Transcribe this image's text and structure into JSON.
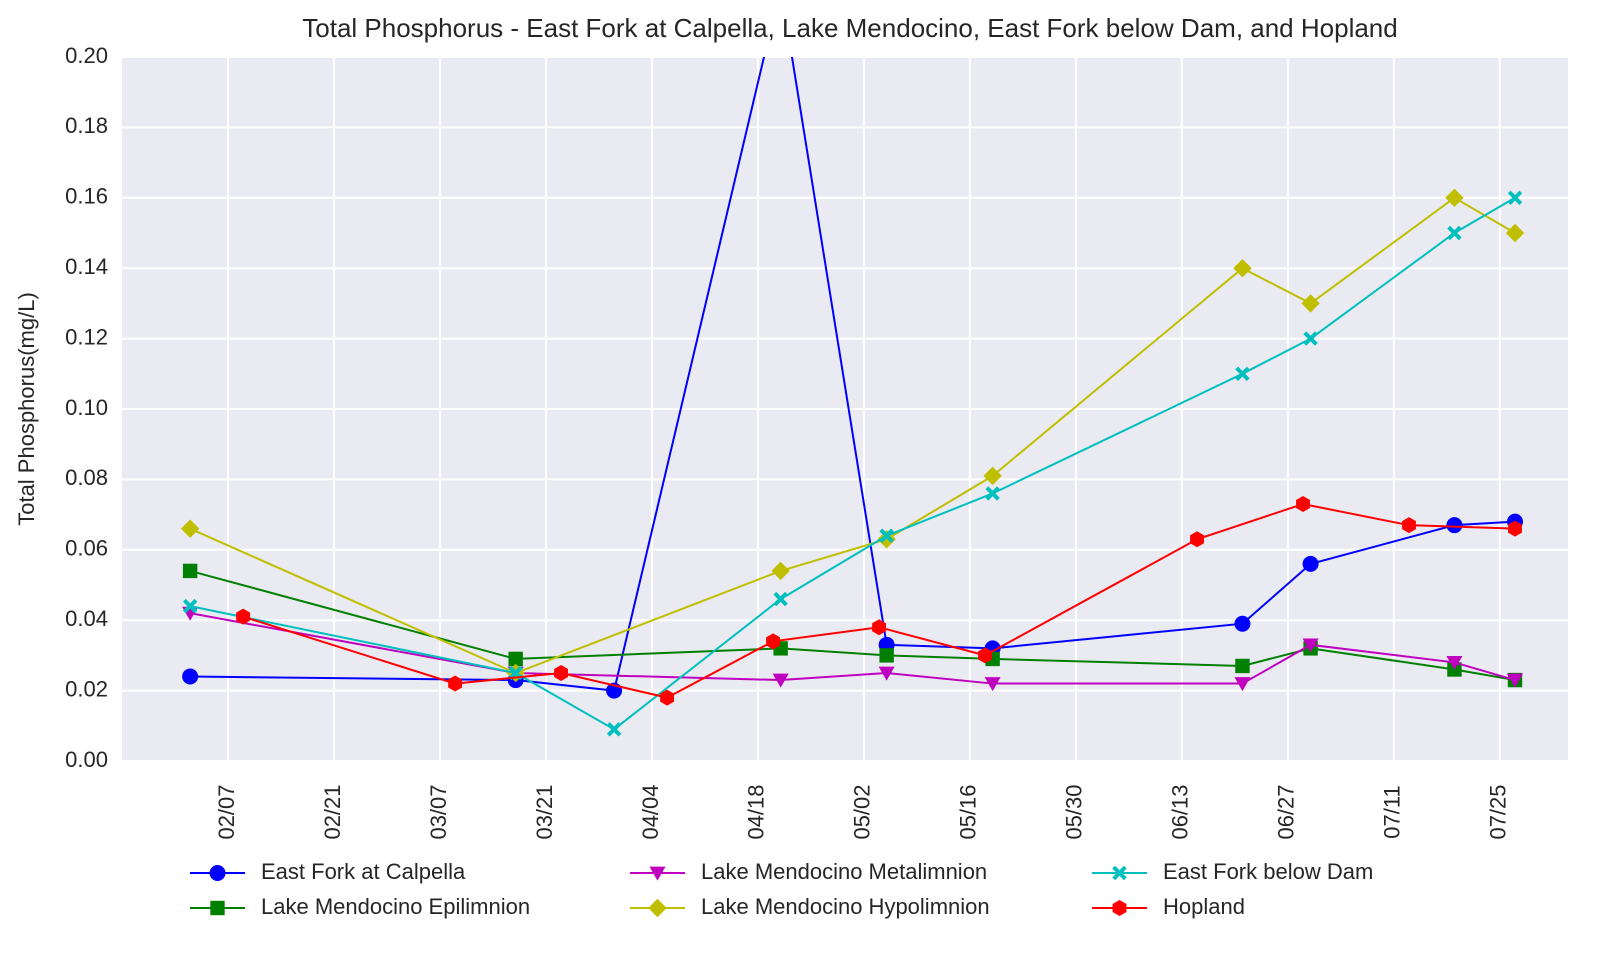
{
  "chart_data": {
    "type": "line",
    "title": "Total Phosphorus - East Fork at Calpella, Lake Mendocino, East Fork below Dam, and Hopland",
    "y_label": "Total Phosphorus(mg/L)",
    "xlim": [
      "01/24",
      "08/03"
    ],
    "xticks": [
      "02/07",
      "02/21",
      "03/07",
      "03/21",
      "04/04",
      "04/18",
      "05/02",
      "05/16",
      "05/30",
      "06/13",
      "06/27",
      "07/11",
      "07/25"
    ],
    "ylim": [
      0,
      0.2
    ],
    "yticks": [
      {
        "value": 0,
        "label": "0.00"
      },
      {
        "value": 0.02,
        "label": "0.02"
      },
      {
        "value": 0.04,
        "label": "0.04"
      },
      {
        "value": 0.06,
        "label": "0.06"
      },
      {
        "value": 0.08,
        "label": "0.08"
      },
      {
        "value": 0.1,
        "label": "0.10"
      },
      {
        "value": 0.12,
        "label": "0.12"
      },
      {
        "value": 0.14,
        "label": "0.14"
      },
      {
        "value": 0.16,
        "label": "0.16"
      },
      {
        "value": 0.18,
        "label": "0.18"
      },
      {
        "value": 0.2,
        "label": "0.20"
      }
    ],
    "grid": true,
    "legend": "bottom",
    "series": [
      {
        "name": "East Fork at Calpella",
        "color": "#0000ff",
        "marker": "circle",
        "x": [
          "02/02",
          "03/17",
          "03/30",
          "04/21",
          "05/05",
          "05/19",
          "06/21",
          "06/30",
          "07/19",
          "07/27"
        ],
        "values": [
          0.024,
          0.023,
          0.02,
          0.22,
          0.033,
          0.032,
          0.039,
          0.056,
          0.067,
          0.068
        ]
      },
      {
        "name": "Lake Mendocino Epilimnion",
        "color": "#008000",
        "marker": "square",
        "x": [
          "02/02",
          "03/17",
          "04/21",
          "05/05",
          "05/19",
          "06/21",
          "06/30",
          "07/19",
          "07/27"
        ],
        "values": [
          0.054,
          0.029,
          0.032,
          0.03,
          0.029,
          0.027,
          0.032,
          0.026,
          0.023
        ]
      },
      {
        "name": "Lake Mendocino Metalimnion",
        "color": "#bf00bf",
        "marker": "triangle-down",
        "x": [
          "02/02",
          "03/17",
          "04/21",
          "05/05",
          "05/19",
          "06/21",
          "06/30",
          "07/19",
          "07/27"
        ],
        "values": [
          0.042,
          0.025,
          0.023,
          0.025,
          0.022,
          0.022,
          0.033,
          0.028,
          0.023
        ]
      },
      {
        "name": "Lake Mendocino Hypolimnion",
        "color": "#bfbf00",
        "marker": "diamond",
        "x": [
          "02/02",
          "03/17",
          "04/21",
          "05/05",
          "05/19",
          "06/21",
          "06/30",
          "07/19",
          "07/27"
        ],
        "values": [
          0.066,
          0.025,
          0.054,
          0.063,
          0.081,
          0.14,
          0.13,
          0.16,
          0.15
        ]
      },
      {
        "name": "East Fork below Dam",
        "color": "#00bfbf",
        "marker": "x",
        "x": [
          "02/02",
          "03/17",
          "03/30",
          "04/21",
          "05/05",
          "05/19",
          "06/21",
          "06/30",
          "07/19",
          "07/27"
        ],
        "values": [
          0.044,
          0.025,
          0.009,
          0.046,
          0.064,
          0.076,
          0.11,
          0.12,
          0.15,
          0.16
        ]
      },
      {
        "name": "Hopland",
        "color": "#ff0000",
        "marker": "hexagon",
        "x": [
          "02/09",
          "03/09",
          "03/23",
          "04/06",
          "04/20",
          "05/04",
          "05/18",
          "06/15",
          "06/29",
          "07/13",
          "07/27"
        ],
        "values": [
          0.041,
          0.022,
          0.025,
          0.018,
          0.034,
          0.038,
          0.03,
          0.063,
          0.073,
          0.067,
          0.066
        ]
      }
    ]
  }
}
